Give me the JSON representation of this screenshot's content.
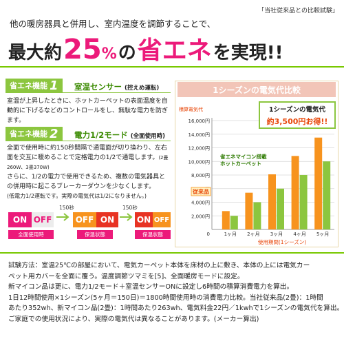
{
  "tag": "「当社従来品との比較試験」",
  "subheading": "他の暖房器具と併用し、室内温度を調節することで、",
  "headline": {
    "pre": "最大約",
    "percent_num": "25",
    "percent_sign": "%",
    "mid": "の",
    "save": "省エネ",
    "post": "を実現!!"
  },
  "feature1": {
    "badge": "省エネ機能",
    "num": "1",
    "title": "室温センサー",
    "title_note": "(控えめ運転)",
    "desc": "室温が上昇したときに、ホットカーペットの表面温度を自動的に下げるなどのコントロールをし、無駄な電力を防ぎます。"
  },
  "feature2": {
    "badge": "省エネ機能",
    "num": "2",
    "title": "電力1/2モード",
    "title_note": "(全面使用時)",
    "desc1": "全面で使用時に約150秒間隔で通電面が切り換わり、左右面を交互に暖めることで定格電力の1/2で通電します。",
    "desc1_note": "(2畳260W、3畳370W)",
    "desc2": "さらに、1/2の電力で使用できるため、複数の電気器具との併用時に起こるブレーカーダウンを少なくします。",
    "desc3": "(低電力1/2運転です。実際の電気代は1/2になりません。)"
  },
  "diagram": {
    "on": "ON",
    "off": "OFF",
    "seconds": "150秒",
    "label_full": "全面使用時",
    "label_keep": "保温状態"
  },
  "chart": {
    "header": "1シーズンの電気代比較",
    "callout_line1": "1シーズンの電気代",
    "callout_line2": "約3,500円お得!!"
  },
  "chart_data": {
    "type": "bar",
    "title": "1シーズンの電気代比較",
    "ylabel": "積算電気代",
    "xlabel": "使用期間(1シーズン)",
    "ylim": [
      0,
      16000
    ],
    "yticks": [
      "16,000円",
      "14,000円",
      "12,000円",
      "10,000円",
      "8,000円",
      "6,000円",
      "4,000円",
      "2,000円",
      "0"
    ],
    "categories": [
      "1ヶ月",
      "2ヶ月",
      "3ヶ月",
      "4ヶ月",
      "5ヶ月"
    ],
    "series": [
      {
        "name": "従来品",
        "values": [
          2700,
          5400,
          8100,
          10800,
          13500
        ],
        "color": "#f7931e"
      },
      {
        "name": "省エネマイコン搭載ホットカーペット",
        "values": [
          2000,
          4000,
          6000,
          8000,
          10000
        ],
        "color": "#8cc63f"
      }
    ],
    "series_label_line1": "省エネマイコン搭載",
    "series_label_line2": "ホットカーペット",
    "zero_label": "0",
    "legend": "inline"
  },
  "test": [
    "試験方法：室温25℃の部屋において、電気カーペット本体を床材の上に敷き、本体の上には電気カー",
    "ペット用カバーを全面に覆う。温度調節ツマミを[5]、全面暖房モードに設定。",
    "新マイコン品は更に、電力1/2モード＋室温センサーONに設定し6時間の積算消費電力を算出。",
    "1日12時間使用×1シーズン(5ヶ月＝150日)＝1800時間使用時の消費電力比較。当社従来品(2畳)：1時間",
    "あたり352wh、新マイコン品(2畳)：1時間あたり263wh、電気料金22円／1kwhで1シーズンの電気代を算出。",
    "ご家庭での使用状況により、実際の電気代は異なることがあります。(メーカー算出)"
  ]
}
